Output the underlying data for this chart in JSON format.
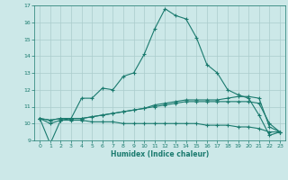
{
  "xlabel": "Humidex (Indice chaleur)",
  "x": [
    0,
    1,
    2,
    3,
    4,
    5,
    6,
    7,
    8,
    9,
    10,
    11,
    12,
    13,
    14,
    15,
    16,
    17,
    18,
    19,
    20,
    21,
    22,
    23
  ],
  "line1": [
    10.3,
    8.8,
    10.2,
    10.3,
    11.5,
    11.5,
    12.1,
    12.0,
    12.8,
    13.0,
    14.1,
    15.6,
    16.8,
    16.4,
    16.2,
    15.1,
    13.5,
    13.0,
    12.0,
    11.7,
    11.5,
    10.5,
    9.3,
    9.5
  ],
  "line2": [
    10.3,
    10.2,
    10.3,
    10.3,
    10.3,
    10.4,
    10.5,
    10.6,
    10.7,
    10.8,
    10.9,
    11.0,
    11.1,
    11.2,
    11.3,
    11.3,
    11.3,
    11.3,
    11.3,
    11.3,
    11.3,
    11.2,
    10.0,
    9.5
  ],
  "line3": [
    10.3,
    10.2,
    10.3,
    10.3,
    10.3,
    10.4,
    10.5,
    10.6,
    10.7,
    10.8,
    10.9,
    11.1,
    11.2,
    11.3,
    11.4,
    11.4,
    11.4,
    11.4,
    11.5,
    11.6,
    11.6,
    11.5,
    9.8,
    9.5
  ],
  "line4": [
    10.3,
    10.0,
    10.2,
    10.2,
    10.2,
    10.1,
    10.1,
    10.1,
    10.0,
    10.0,
    10.0,
    10.0,
    10.0,
    10.0,
    10.0,
    10.0,
    9.9,
    9.9,
    9.9,
    9.8,
    9.8,
    9.7,
    9.5,
    9.5
  ],
  "line_color": "#1a7a6e",
  "bg_color": "#cce8e8",
  "grid_color": "#aacccc",
  "ylim": [
    9,
    17
  ],
  "xlim": [
    -0.5,
    23.5
  ]
}
